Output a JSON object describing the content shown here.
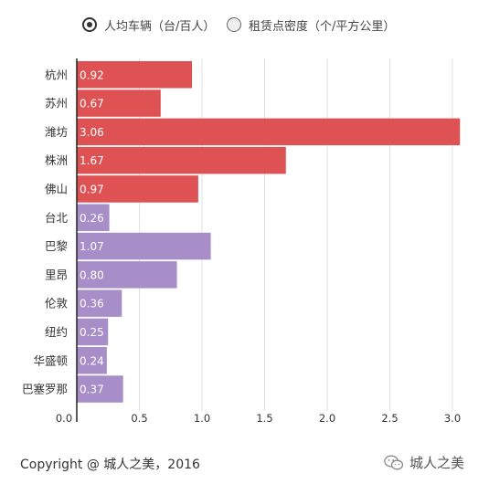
{
  "legend": {
    "items": [
      {
        "label": "人均车辆（台/百人）",
        "color": "#de5254",
        "state": "selected"
      },
      {
        "label": "租赁点密度（个/平方公里）",
        "color": "#a88ec8",
        "state": "unselected"
      }
    ]
  },
  "chart_data": {
    "type": "bar",
    "orientation": "horizontal",
    "categories": [
      "杭州",
      "苏州",
      "潍坊",
      "株洲",
      "佛山",
      "台北",
      "巴黎",
      "里昂",
      "伦敦",
      "纽约",
      "华盛顿",
      "巴塞罗那"
    ],
    "values": [
      0.92,
      0.67,
      3.06,
      1.67,
      0.97,
      0.26,
      1.07,
      0.8,
      0.36,
      0.25,
      0.24,
      0.37
    ],
    "value_labels": [
      "0.92",
      "0.67",
      "3.06",
      "1.67",
      "0.97",
      "0.26",
      "1.07",
      "0.80",
      "0.36",
      "0.25",
      "0.24",
      "0.37"
    ],
    "bar_colors": [
      "#de5254",
      "#de5254",
      "#de5254",
      "#de5254",
      "#de5254",
      "#a88ec8",
      "#a88ec8",
      "#a88ec8",
      "#a88ec8",
      "#a88ec8",
      "#a88ec8",
      "#a88ec8"
    ],
    "xlim": [
      0,
      3.0
    ],
    "xticks": [
      0,
      0.5,
      1.0,
      1.5,
      2.0,
      2.5,
      3.0
    ],
    "xtick_labels": [
      "0.0",
      "0.5",
      "1.0",
      "1.5",
      "2.0",
      "2.5",
      "3.0"
    ],
    "grid": "vertical"
  },
  "footer": {
    "copyright": "Copyright @ 城人之美，2016",
    "watermark": "城人之美",
    "watermark_icon": "wechat-icon"
  }
}
